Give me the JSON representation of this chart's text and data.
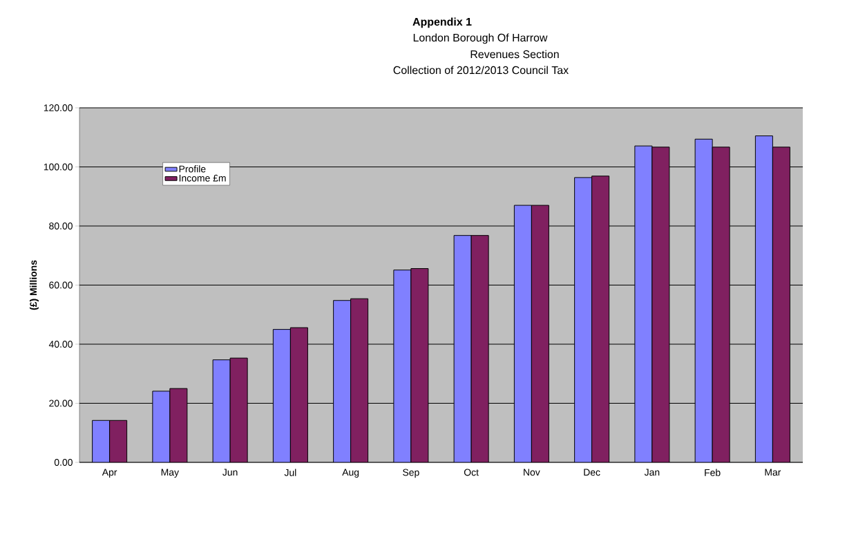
{
  "chart_data": {
    "type": "bar",
    "title": "Appendix 1",
    "subtitle": "London Borough Of Harrow",
    "annotations": [
      "Revenues  Section",
      "Collection of 2012/2013  Council Tax"
    ],
    "ylabel": "(£) Millions",
    "categories": [
      "Apr",
      "May",
      "Jun",
      "Jul",
      "Aug",
      "Sep",
      "Oct",
      "Nov",
      "Dec",
      "Jan",
      "Feb",
      "Mar"
    ],
    "series": [
      {
        "name": "Profile",
        "color": "#8080ff",
        "values": [
          14.2,
          24.1,
          34.7,
          45.0,
          54.8,
          65.1,
          76.8,
          87.0,
          96.4,
          107.1,
          109.4,
          110.5
        ]
      },
      {
        "name": "Income £m",
        "color": "#802060",
        "values": [
          14.2,
          25.0,
          35.3,
          45.6,
          55.4,
          65.6,
          76.8,
          87.0,
          96.9,
          106.7,
          106.7,
          106.7
        ]
      }
    ],
    "ylim": [
      0,
      120
    ],
    "yticks": [
      {
        "value": 0,
        "label": "0.00"
      },
      {
        "value": 20,
        "label": "20.00"
      },
      {
        "value": 40,
        "label": "40.00"
      },
      {
        "value": 60,
        "label": "60.00"
      },
      {
        "value": 80,
        "label": "80.00"
      },
      {
        "value": 100,
        "label": "100.00"
      },
      {
        "value": 120,
        "label": "120.00"
      }
    ],
    "grid": "y",
    "legend": "top left"
  }
}
